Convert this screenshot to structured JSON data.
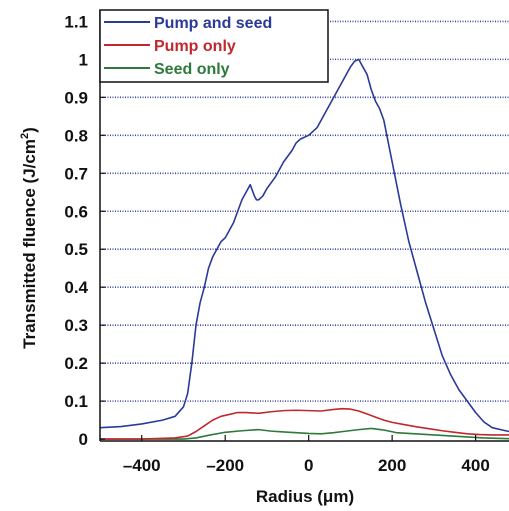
{
  "chart_data": {
    "type": "line",
    "xlabel": "Radius (μm)",
    "ylabel": "Transmitted fluence (J/cm",
    "ylabel_sup": "2",
    "ylabel_close": ")",
    "xlim": [
      -500,
      480
    ],
    "ylim": [
      -0.005,
      1.13
    ],
    "x_ticks": [
      -400,
      -200,
      0,
      200,
      400
    ],
    "x_tick_labels": [
      "–400",
      "–200",
      "0",
      "200",
      "400"
    ],
    "y_ticks": [
      0,
      0.1,
      0.2,
      0.3,
      0.4,
      0.5,
      0.6,
      0.7,
      0.8,
      0.9,
      1,
      1.1
    ],
    "y_tick_labels": [
      "0",
      "0.1",
      "0.2",
      "0.3",
      "0.4",
      "0.5",
      "0.6",
      "0.7",
      "0.8",
      "0.9",
      "1",
      "1.1"
    ],
    "grid": "horizontal dotted",
    "legend_position": "top-left",
    "series": [
      {
        "name": "Pump and seed",
        "color": "#2b3a98",
        "x": [
          -500,
          -450,
          -400,
          -350,
          -320,
          -300,
          -290,
          -280,
          -270,
          -260,
          -250,
          -240,
          -230,
          -220,
          -210,
          -200,
          -190,
          -180,
          -170,
          -160,
          -150,
          -140,
          -130,
          -125,
          -120,
          -110,
          -100,
          -80,
          -60,
          -40,
          -30,
          -20,
          0,
          20,
          40,
          60,
          80,
          100,
          110,
          120,
          130,
          140,
          150,
          160,
          170,
          180,
          200,
          220,
          240,
          260,
          280,
          300,
          320,
          340,
          360,
          380,
          400,
          420,
          440,
          460,
          480
        ],
        "values": [
          0.03,
          0.033,
          0.04,
          0.05,
          0.06,
          0.085,
          0.12,
          0.2,
          0.3,
          0.36,
          0.4,
          0.45,
          0.48,
          0.5,
          0.52,
          0.53,
          0.55,
          0.57,
          0.6,
          0.63,
          0.65,
          0.67,
          0.64,
          0.63,
          0.63,
          0.64,
          0.66,
          0.69,
          0.73,
          0.76,
          0.78,
          0.79,
          0.8,
          0.82,
          0.86,
          0.9,
          0.94,
          0.98,
          0.995,
          1.0,
          0.98,
          0.96,
          0.92,
          0.89,
          0.87,
          0.84,
          0.73,
          0.62,
          0.52,
          0.44,
          0.36,
          0.29,
          0.22,
          0.17,
          0.13,
          0.1,
          0.07,
          0.045,
          0.03,
          0.025,
          0.02
        ]
      },
      {
        "name": "Pump only",
        "color": "#c0282e",
        "x": [
          -500,
          -400,
          -320,
          -290,
          -270,
          -250,
          -230,
          -210,
          -190,
          -170,
          -150,
          -120,
          -90,
          -60,
          -30,
          0,
          30,
          60,
          80,
          100,
          120,
          140,
          160,
          180,
          200,
          230,
          260,
          290,
          320,
          350,
          380,
          410,
          440,
          480
        ],
        "values": [
          0.0,
          0.0,
          0.003,
          0.008,
          0.02,
          0.035,
          0.05,
          0.06,
          0.065,
          0.07,
          0.07,
          0.068,
          0.072,
          0.075,
          0.076,
          0.075,
          0.074,
          0.078,
          0.08,
          0.079,
          0.074,
          0.066,
          0.058,
          0.05,
          0.044,
          0.038,
          0.032,
          0.027,
          0.022,
          0.018,
          0.014,
          0.012,
          0.011,
          0.011
        ]
      },
      {
        "name": "Seed only",
        "color": "#2d7a3a",
        "x": [
          -500,
          -400,
          -300,
          -270,
          -240,
          -200,
          -160,
          -120,
          -90,
          -60,
          -30,
          0,
          30,
          60,
          90,
          120,
          150,
          180,
          210,
          240,
          270,
          300,
          330,
          360,
          390,
          420,
          450,
          480
        ],
        "values": [
          0.0,
          0.0,
          0.0,
          0.003,
          0.01,
          0.018,
          0.022,
          0.025,
          0.021,
          0.019,
          0.017,
          0.015,
          0.014,
          0.017,
          0.021,
          0.025,
          0.028,
          0.024,
          0.017,
          0.015,
          0.013,
          0.011,
          0.009,
          0.007,
          0.005,
          0.003,
          0.002,
          0.001
        ]
      }
    ]
  }
}
